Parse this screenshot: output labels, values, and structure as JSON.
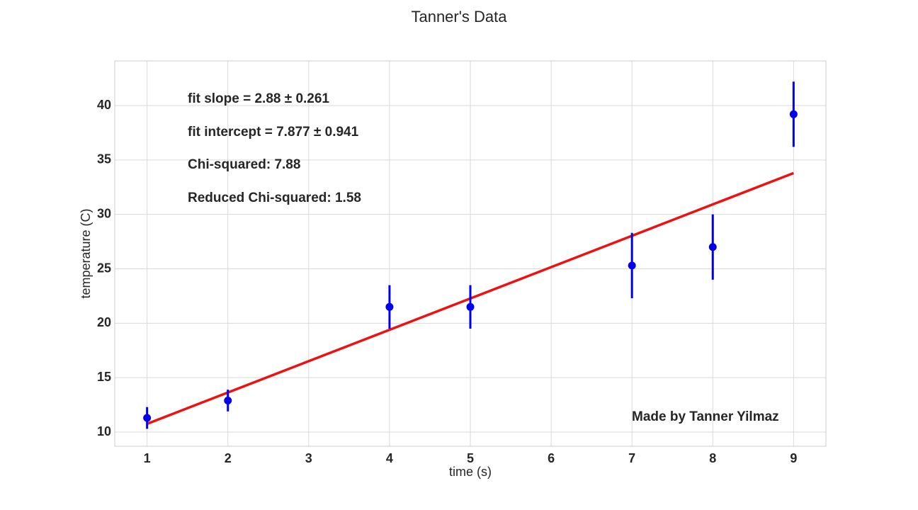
{
  "chart_data": {
    "type": "scatter",
    "title": "Tanner's Data",
    "xlabel": "time (s)",
    "ylabel": "temperature (C)",
    "xlim": [
      0.6,
      9.4
    ],
    "ylim": [
      8.7,
      44.1
    ],
    "xticks": [
      1,
      2,
      3,
      4,
      5,
      6,
      7,
      8,
      9
    ],
    "yticks": [
      10,
      15,
      20,
      25,
      30,
      35,
      40
    ],
    "grid": true,
    "series": [
      {
        "x": [
          1,
          2,
          4,
          5,
          7,
          8,
          9
        ],
        "y": [
          11.3,
          12.9,
          21.5,
          21.5,
          25.3,
          27.0,
          39.2
        ],
        "yerr": [
          1.0,
          1.0,
          2.0,
          2.0,
          3.0,
          3.0,
          3.0
        ],
        "color": "#0000ee"
      }
    ],
    "fit": {
      "slope": 2.88,
      "intercept": 7.877,
      "x_range": [
        1,
        9
      ],
      "color": "#ee1111"
    },
    "annotations": [
      "fit slope = 2.88 ± 0.261",
      "fit intercept = 7.877 ± 0.941",
      "Chi-squared: 7.88",
      "Reduced Chi-squared: 1.58",
      "Made by Tanner Yilmaz"
    ]
  }
}
